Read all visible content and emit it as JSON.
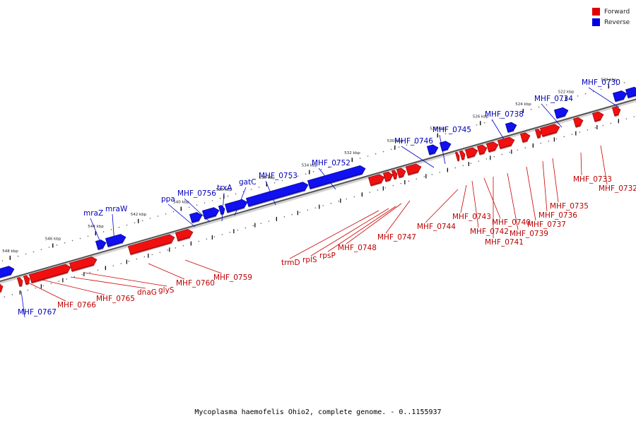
{
  "title": "Mycoplasma haemofelis Ohio2, complete genome. - 0..1155937",
  "legend": [
    {
      "label": "Forward",
      "color": "#e00000"
    },
    {
      "label": "Reverse",
      "color": "#0000e0"
    }
  ],
  "ruler_ticks": [
    "548 kbp",
    "546 kbp",
    "544 kbp",
    "542 kbp",
    "540 kbp",
    "538 kbp",
    "536 kbp",
    "534 kbp",
    "532 kbp",
    "530 kbp",
    "528 kbp",
    "526 kbp",
    "524 kbp",
    "522 kbp",
    "520 kbp"
  ],
  "reverse_labels": [
    "MHF_0730",
    "MHF_0734",
    "MHF_0738",
    "MHF_0745",
    "MHF_0746",
    "MHF_0752",
    "MHF_0753",
    "gatC",
    "trxA",
    "MHF_0756",
    "ppa",
    "mraW",
    "mraZ",
    "MHF_0767"
  ],
  "forward_labels": [
    "MHF_0732",
    "MHF_0733",
    "MHF_0735",
    "MHF_0736",
    "MHF_0737",
    "MHF_0739",
    "MHF_0741",
    "MHF_0740",
    "MHF_0742",
    "MHF_0743",
    "MHF_0744",
    "MHF_0747",
    "MHF_0748",
    "rpsP",
    "rplS",
    "trmD",
    "MHF_0759",
    "MHF_0760",
    "glyS",
    "dnaG",
    "MHF_0765",
    "MHF_0766"
  ]
}
